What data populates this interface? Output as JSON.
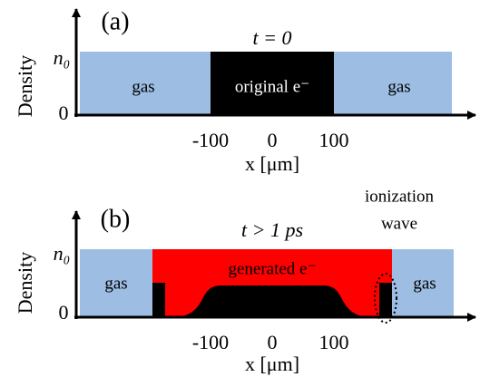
{
  "panels": [
    {
      "label": "(a)",
      "time": "t = 0",
      "y_axis_label": "Density",
      "y_top": "n₀",
      "y_zero": "0",
      "regions": [
        "gas",
        "original e⁻",
        "gas"
      ],
      "x_ticks": [
        "-100",
        "0",
        "100"
      ],
      "x_axis_label": "x [μm]"
    },
    {
      "label": "(b)",
      "time": "t > 1 ps",
      "y_axis_label": "Density",
      "y_top": "n₀",
      "y_zero": "0",
      "regions": [
        "gas",
        "generated  e⁻",
        "gas"
      ],
      "annotation": [
        "ionization",
        "wave"
      ],
      "x_ticks": [
        "-100",
        "0",
        "100"
      ],
      "x_axis_label": "x [μm]"
    }
  ]
}
